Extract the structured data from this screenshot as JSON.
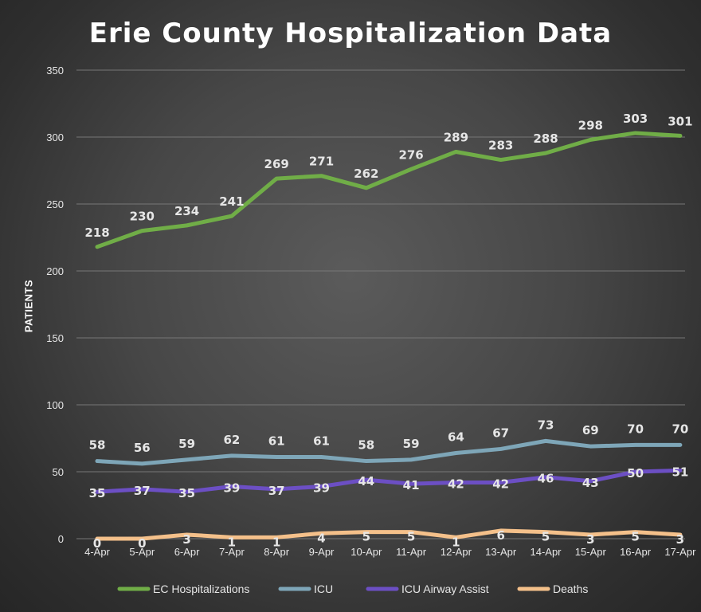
{
  "chart_data": {
    "type": "line",
    "title": "Erie County Hospitalization Data",
    "xlabel": "",
    "ylabel": "PATIENTS",
    "ylim": [
      0,
      350
    ],
    "yticks": [
      0,
      50,
      100,
      150,
      200,
      250,
      300,
      350
    ],
    "grid": "horizontal",
    "legend_position": "bottom",
    "categories": [
      "4-Apr",
      "5-Apr",
      "6-Apr",
      "7-Apr",
      "8-Apr",
      "9-Apr",
      "10-Apr",
      "11-Apr",
      "12-Apr",
      "13-Apr",
      "14-Apr",
      "15-Apr",
      "16-Apr",
      "17-Apr"
    ],
    "series": [
      {
        "name": "EC Hospitalizations",
        "color": "#70ad47",
        "values": [
          218,
          230,
          234,
          241,
          269,
          271,
          262,
          276,
          289,
          283,
          288,
          298,
          303,
          301
        ]
      },
      {
        "name": "ICU",
        "color": "#7ea6b8",
        "values": [
          58,
          56,
          59,
          62,
          61,
          61,
          58,
          59,
          64,
          67,
          73,
          69,
          70,
          70
        ]
      },
      {
        "name": "ICU Airway Assist",
        "color": "#6c4fc4",
        "values": [
          35,
          37,
          35,
          39,
          37,
          39,
          44,
          41,
          42,
          42,
          46,
          43,
          50,
          51
        ]
      },
      {
        "name": "Deaths",
        "color": "#f4c08a",
        "values": [
          0,
          0,
          3,
          1,
          1,
          4,
          5,
          5,
          1,
          6,
          5,
          3,
          5,
          3
        ]
      }
    ]
  }
}
